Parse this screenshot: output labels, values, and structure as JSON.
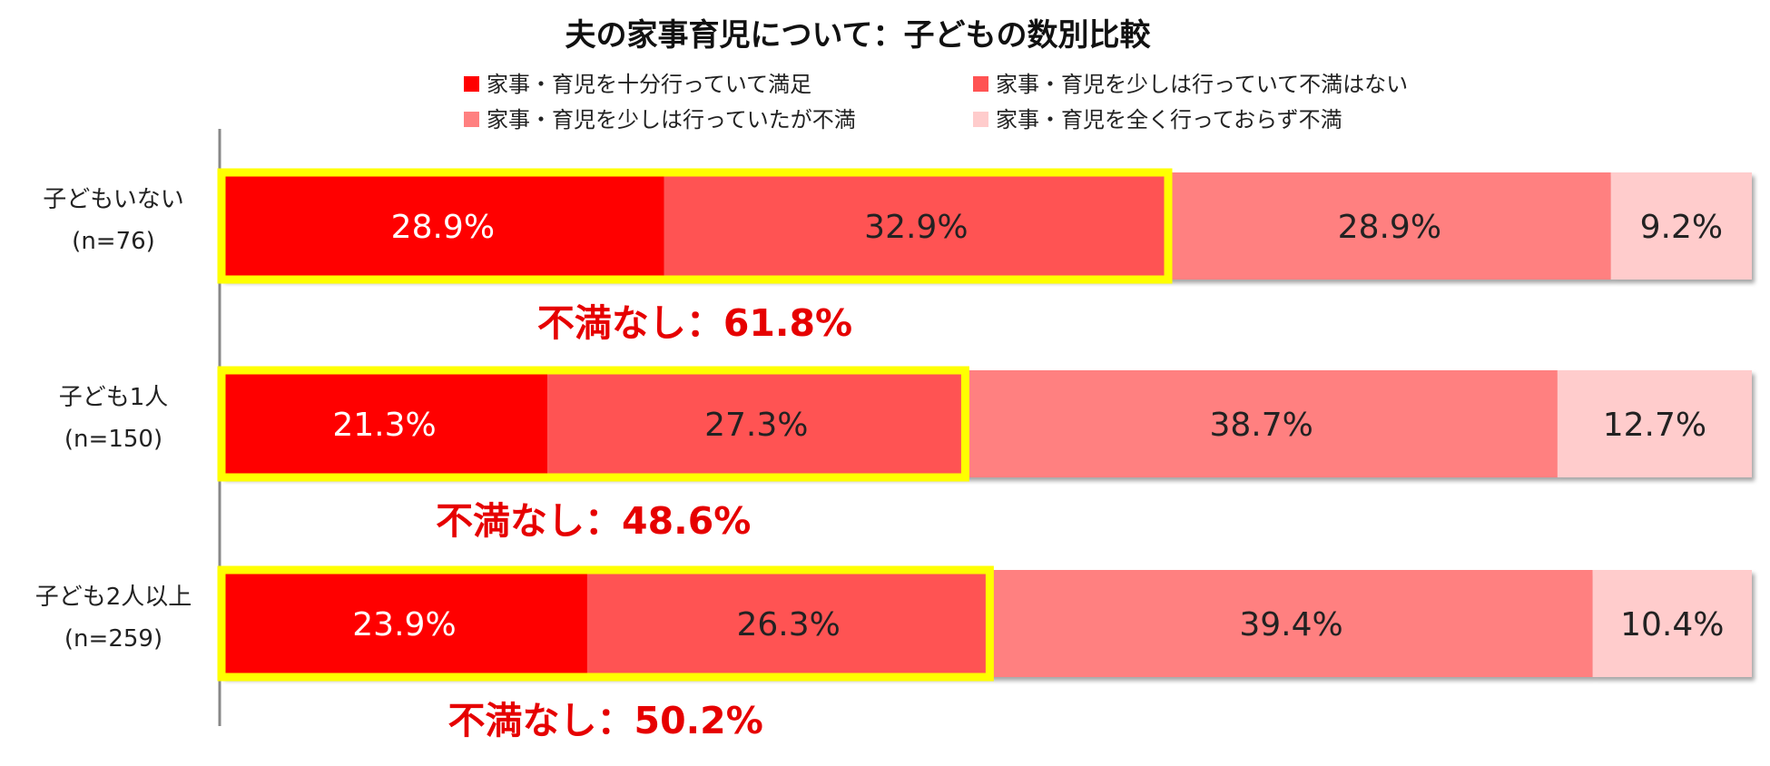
{
  "chart_data": {
    "type": "bar",
    "orientation": "horizontal",
    "stacked": true,
    "normalized": true,
    "title": "夫の家事育児について：子どもの数別比較",
    "categories": [
      {
        "name": "子どもいない",
        "n": "(n=76)"
      },
      {
        "name": "子ども1人",
        "n": "(n=150)"
      },
      {
        "name": "子ども2人以上",
        "n": "(n=259)"
      }
    ],
    "series": [
      {
        "name": "家事・育児を十分行っていて満足",
        "color": "#ff0000",
        "label_color": "#ffffff",
        "values": [
          28.9,
          21.3,
          23.9
        ]
      },
      {
        "name": "家事・育児を少しは行っていて不満はない",
        "color": "#ff5353",
        "label_color": "#222222",
        "values": [
          32.9,
          27.3,
          26.3
        ]
      },
      {
        "name": "家事・育児を少しは行っていたが不満",
        "color": "#ff8080",
        "label_color": "#222222",
        "values": [
          28.9,
          38.7,
          39.4
        ]
      },
      {
        "name": "家事・育児を全く行っておらず不満",
        "color": "#ffcccc",
        "label_color": "#222222",
        "values": [
          9.2,
          12.7,
          10.4
        ]
      }
    ],
    "value_labels": [
      [
        "28.9%",
        "32.9%",
        "28.9%",
        "9.2%"
      ],
      [
        "21.3%",
        "27.3%",
        "38.7%",
        "12.7%"
      ],
      [
        "23.9%",
        "26.3%",
        "39.4%",
        "10.4%"
      ]
    ],
    "annotations": [
      "不満なし：61.8%",
      "不満なし：48.6%",
      "不満なし：50.2%"
    ],
    "highlight_color": "#ffff00",
    "legend_position": "top",
    "grid": false
  }
}
